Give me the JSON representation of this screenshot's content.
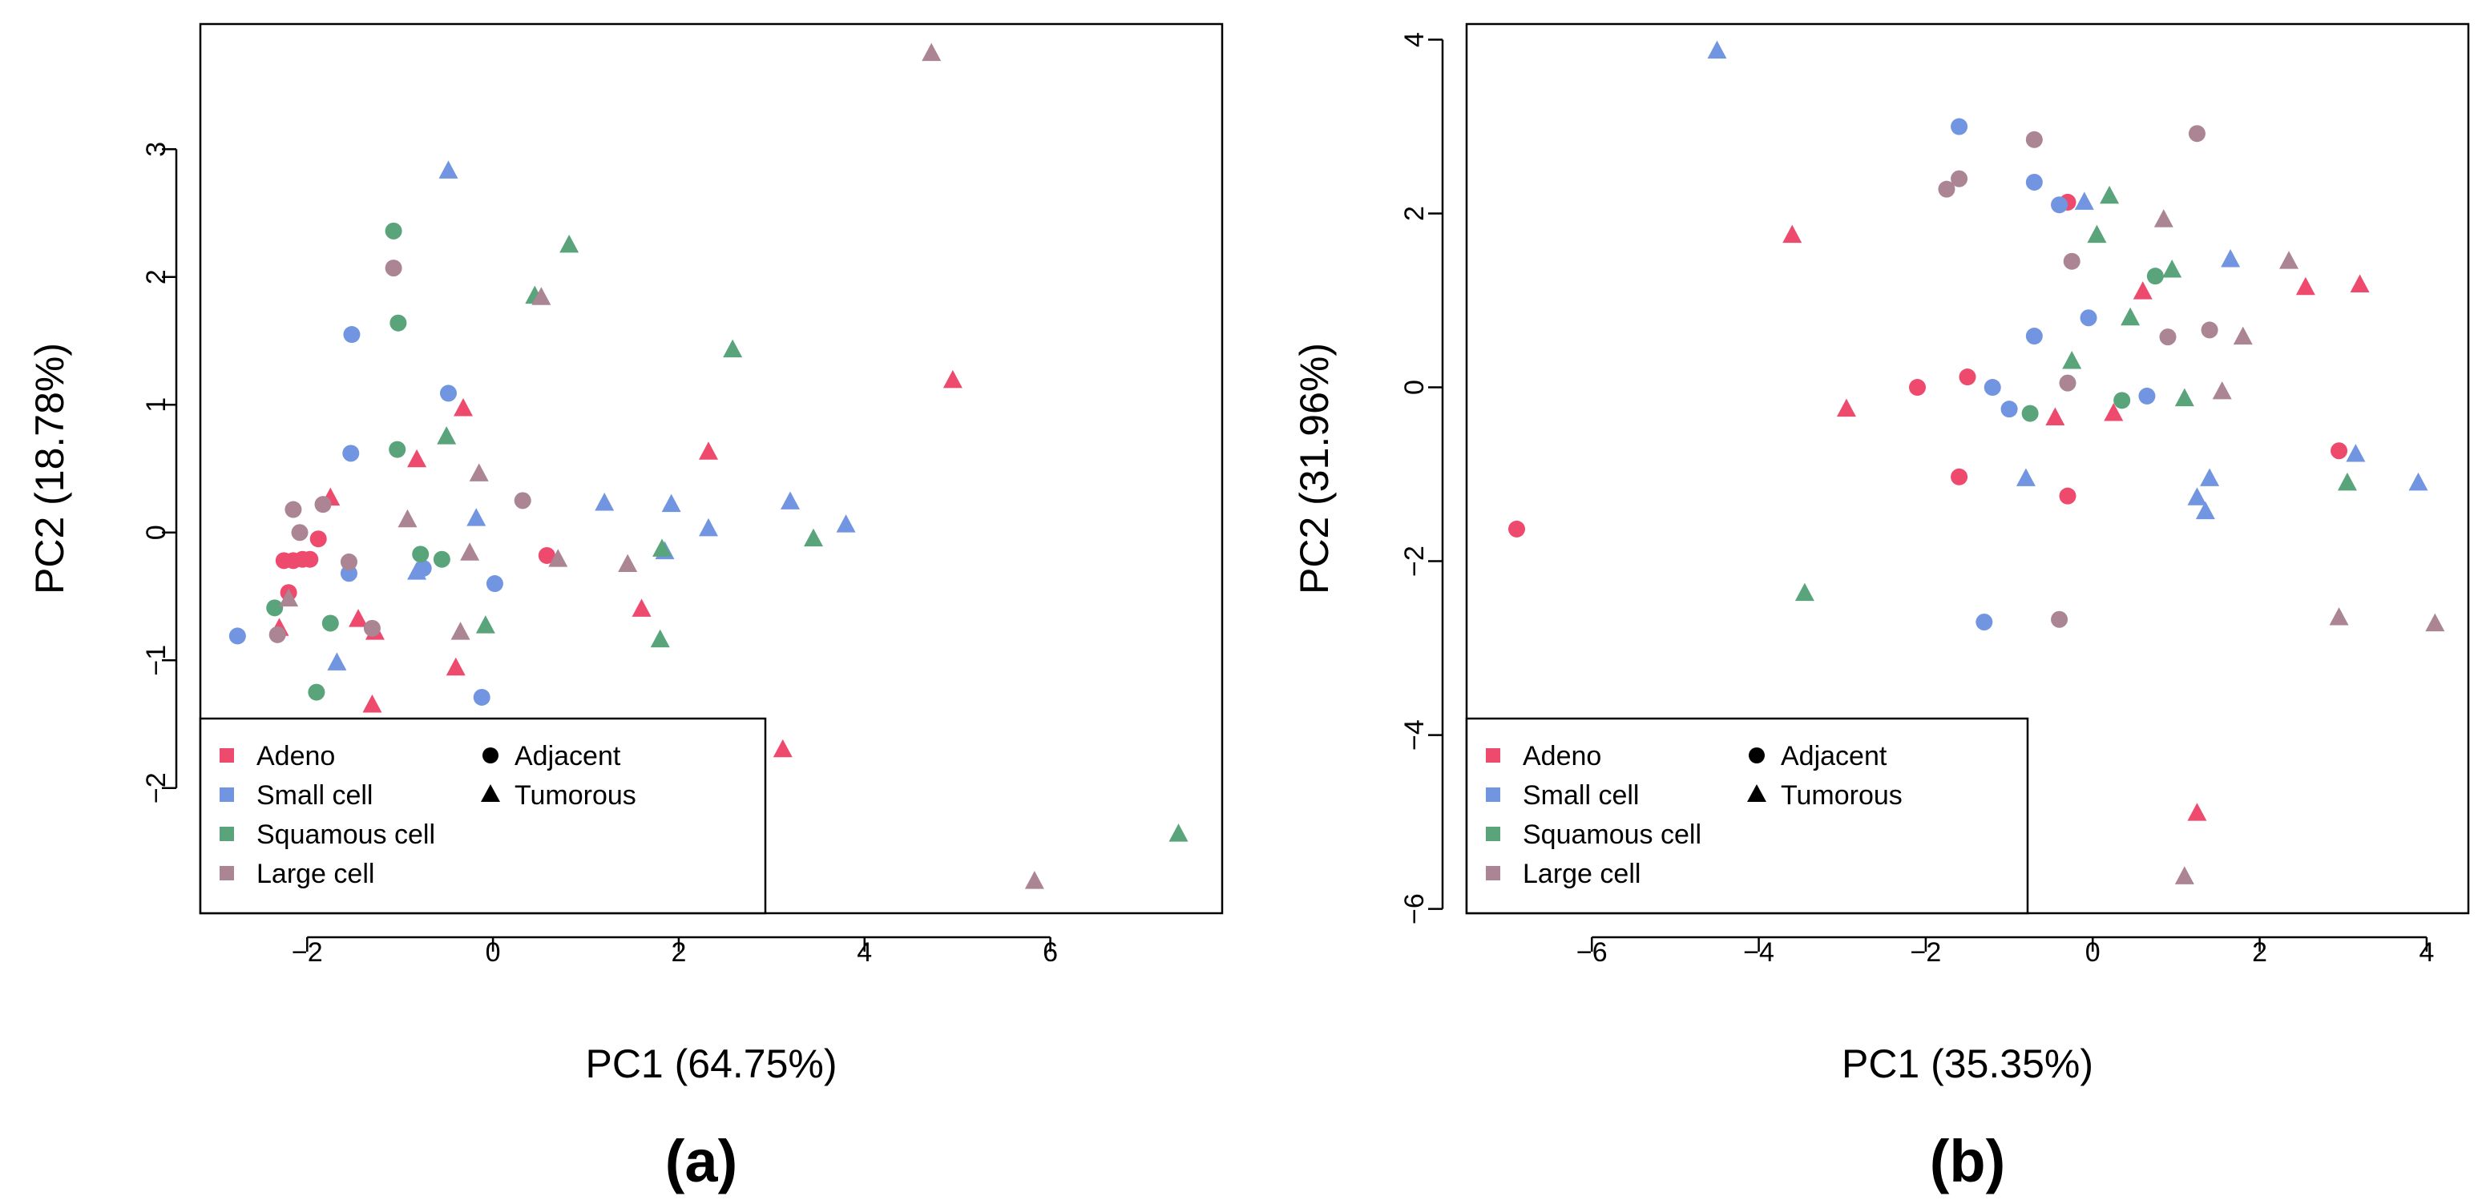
{
  "colors": {
    "Adeno": "#ee4a6e",
    "Small cell": "#7195e0",
    "Squamous cell": "#5aa47b",
    "Large cell": "#ab8593",
    "black": "#000000"
  },
  "chart_data": [
    {
      "type": "scatter",
      "panel_label": "(a)",
      "title": "",
      "xlabel": "PC1 (64.75%)",
      "ylabel": "PC2 (18.78%)",
      "xlim": [
        -3.15,
        7.85
      ],
      "ylim": [
        -2.98,
        3.98
      ],
      "xticks": [
        -2,
        0,
        2,
        4,
        6
      ],
      "yticks": [
        -2,
        -1,
        0,
        1,
        2,
        3
      ],
      "xtick_labels": [
        "−2",
        "0",
        "2",
        "4",
        "6"
      ],
      "ytick_labels": [
        "−2",
        "−1",
        "0",
        "1",
        "2",
        "3"
      ],
      "grid": false,
      "legend": {
        "placement": "bottom-left",
        "subtypes": [
          "Adeno",
          "Small cell",
          "Squamous cell",
          "Large cell"
        ],
        "shapes": [
          {
            "label": "Adjacent",
            "marker": "circle"
          },
          {
            "label": "Tumorous",
            "marker": "triangle"
          }
        ]
      },
      "series": [
        {
          "name": "Adeno",
          "marker": "circle",
          "points": [
            [
              -2.25,
              -0.22
            ],
            [
              -2.15,
              -0.22
            ],
            [
              -2.05,
              -0.21
            ],
            [
              -1.97,
              -0.21
            ],
            [
              -1.88,
              -0.05
            ],
            [
              -2.2,
              -0.47
            ],
            [
              0.58,
              -0.18
            ]
          ]
        },
        {
          "name": "Adeno",
          "marker": "triangle",
          "points": [
            [
              -1.75,
              0.27
            ],
            [
              -0.82,
              0.57
            ],
            [
              -0.32,
              0.97
            ],
            [
              2.32,
              0.63
            ],
            [
              4.95,
              1.19
            ],
            [
              -1.45,
              -0.68
            ],
            [
              -1.27,
              -0.78
            ],
            [
              -0.4,
              -1.06
            ],
            [
              -1.3,
              -1.35
            ],
            [
              1.6,
              -0.6
            ],
            [
              3.12,
              -1.7
            ],
            [
              -2.3,
              -0.75
            ]
          ]
        },
        {
          "name": "Small cell",
          "marker": "circle",
          "points": [
            [
              -2.75,
              -0.81
            ],
            [
              -1.52,
              1.55
            ],
            [
              -1.53,
              0.62
            ],
            [
              -0.48,
              1.09
            ],
            [
              -1.55,
              -0.32
            ],
            [
              -0.75,
              -0.28
            ],
            [
              0.02,
              -0.4
            ],
            [
              -0.12,
              -1.29
            ]
          ]
        },
        {
          "name": "Small cell",
          "marker": "triangle",
          "points": [
            [
              -0.48,
              2.83
            ],
            [
              -1.68,
              -1.02
            ],
            [
              -0.82,
              -0.31
            ],
            [
              -0.18,
              0.11
            ],
            [
              1.2,
              0.23
            ],
            [
              1.92,
              0.22
            ],
            [
              2.32,
              0.03
            ],
            [
              3.2,
              0.24
            ],
            [
              3.8,
              0.06
            ],
            [
              1.85,
              -0.15
            ]
          ]
        },
        {
          "name": "Squamous cell",
          "marker": "circle",
          "points": [
            [
              -1.07,
              2.36
            ],
            [
              -1.02,
              1.64
            ],
            [
              -1.03,
              0.65
            ],
            [
              -2.35,
              -0.59
            ],
            [
              -1.75,
              -0.71
            ],
            [
              -0.78,
              -0.17
            ],
            [
              -0.55,
              -0.21
            ],
            [
              -1.9,
              -1.25
            ]
          ]
        },
        {
          "name": "Squamous cell",
          "marker": "triangle",
          "points": [
            [
              0.82,
              2.25
            ],
            [
              0.45,
              1.85
            ],
            [
              2.58,
              1.43
            ],
            [
              -0.5,
              0.75
            ],
            [
              1.82,
              -0.13
            ],
            [
              3.45,
              -0.05
            ],
            [
              -0.08,
              -0.73
            ],
            [
              1.8,
              -0.84
            ],
            [
              7.38,
              -2.36
            ]
          ]
        },
        {
          "name": "Large cell",
          "marker": "circle",
          "points": [
            [
              -1.07,
              2.07
            ],
            [
              -2.15,
              0.18
            ],
            [
              -2.08,
              0.0
            ],
            [
              -1.83,
              0.22
            ],
            [
              -1.55,
              -0.23
            ],
            [
              0.32,
              0.25
            ],
            [
              -2.32,
              -0.8
            ],
            [
              -1.3,
              -0.75
            ]
          ]
        },
        {
          "name": "Large cell",
          "marker": "triangle",
          "points": [
            [
              4.72,
              3.75
            ],
            [
              0.52,
              1.84
            ],
            [
              -0.15,
              0.46
            ],
            [
              -0.92,
              0.1
            ],
            [
              -0.25,
              -0.16
            ],
            [
              0.7,
              -0.21
            ],
            [
              1.45,
              -0.25
            ],
            [
              -0.35,
              -0.78
            ],
            [
              -2.2,
              -0.52
            ],
            [
              5.83,
              -2.73
            ]
          ]
        }
      ]
    },
    {
      "type": "scatter",
      "panel_label": "(b)",
      "title": "",
      "xlabel": "PC1 (35.35%)",
      "ylabel": "PC2 (31.96%)",
      "xlim": [
        -7.5,
        4.5
      ],
      "ylim": [
        -6.05,
        4.18
      ],
      "xticks": [
        -6,
        -4,
        -2,
        0,
        2,
        4
      ],
      "yticks": [
        -6,
        -4,
        -2,
        0,
        2,
        4
      ],
      "xtick_labels": [
        "−6",
        "−4",
        "−2",
        "0",
        "2",
        "4"
      ],
      "ytick_labels": [
        "−6",
        "−4",
        "−2",
        "0",
        "2",
        "4"
      ],
      "grid": false,
      "legend": {
        "placement": "bottom-left",
        "subtypes": [
          "Adeno",
          "Small cell",
          "Squamous cell",
          "Large cell"
        ],
        "shapes": [
          {
            "label": "Adjacent",
            "marker": "circle"
          },
          {
            "label": "Tumorous",
            "marker": "triangle"
          }
        ]
      },
      "series": [
        {
          "name": "Adeno",
          "marker": "circle",
          "points": [
            [
              -6.9,
              -1.63
            ],
            [
              -2.1,
              0.0
            ],
            [
              -1.5,
              0.12
            ],
            [
              -1.6,
              -1.03
            ],
            [
              -0.3,
              -1.25
            ],
            [
              2.95,
              -0.73
            ],
            [
              -0.3,
              2.13
            ]
          ]
        },
        {
          "name": "Adeno",
          "marker": "triangle",
          "points": [
            [
              -3.6,
              1.75
            ],
            [
              -2.95,
              -0.25
            ],
            [
              -0.45,
              -0.35
            ],
            [
              0.25,
              -0.3
            ],
            [
              0.6,
              1.1
            ],
            [
              2.55,
              1.15
            ],
            [
              3.2,
              1.18
            ],
            [
              1.25,
              -4.9
            ]
          ]
        },
        {
          "name": "Small cell",
          "marker": "circle",
          "points": [
            [
              -1.6,
              3.0
            ],
            [
              -0.7,
              2.36
            ],
            [
              -0.4,
              2.1
            ],
            [
              -0.7,
              0.59
            ],
            [
              -0.05,
              0.8
            ],
            [
              -1.2,
              0.0
            ],
            [
              -1.0,
              -0.25
            ],
            [
              0.65,
              -0.1
            ],
            [
              -1.3,
              -2.7
            ]
          ]
        },
        {
          "name": "Small cell",
          "marker": "triangle",
          "points": [
            [
              -4.5,
              3.87
            ],
            [
              -0.1,
              2.13
            ],
            [
              1.65,
              1.47
            ],
            [
              3.15,
              -0.77
            ],
            [
              3.9,
              -1.1
            ],
            [
              1.4,
              -1.05
            ],
            [
              1.25,
              -1.27
            ],
            [
              1.35,
              -1.43
            ],
            [
              -0.8,
              -1.05
            ]
          ]
        },
        {
          "name": "Squamous cell",
          "marker": "circle",
          "points": [
            [
              0.75,
              1.28
            ],
            [
              -0.75,
              -0.3
            ],
            [
              0.35,
              -0.15
            ]
          ]
        },
        {
          "name": "Squamous cell",
          "marker": "triangle",
          "points": [
            [
              0.2,
              2.2
            ],
            [
              0.05,
              1.75
            ],
            [
              0.95,
              1.35
            ],
            [
              0.45,
              0.8
            ],
            [
              -0.25,
              0.3
            ],
            [
              1.1,
              -0.13
            ],
            [
              3.05,
              -1.1
            ],
            [
              -3.45,
              -2.37
            ]
          ]
        },
        {
          "name": "Large cell",
          "marker": "circle",
          "points": [
            [
              -0.7,
              2.85
            ],
            [
              1.25,
              2.92
            ],
            [
              -1.6,
              2.4
            ],
            [
              -1.75,
              2.28
            ],
            [
              -0.25,
              1.45
            ],
            [
              0.9,
              0.58
            ],
            [
              1.4,
              0.66
            ],
            [
              -0.3,
              0.05
            ],
            [
              -0.4,
              -2.67
            ]
          ]
        },
        {
          "name": "Large cell",
          "marker": "triangle",
          "points": [
            [
              0.85,
              1.93
            ],
            [
              2.35,
              1.45
            ],
            [
              1.8,
              0.58
            ],
            [
              1.55,
              -0.05
            ],
            [
              2.95,
              -2.65
            ],
            [
              4.1,
              -2.72
            ],
            [
              1.1,
              -5.63
            ]
          ]
        }
      ]
    }
  ]
}
